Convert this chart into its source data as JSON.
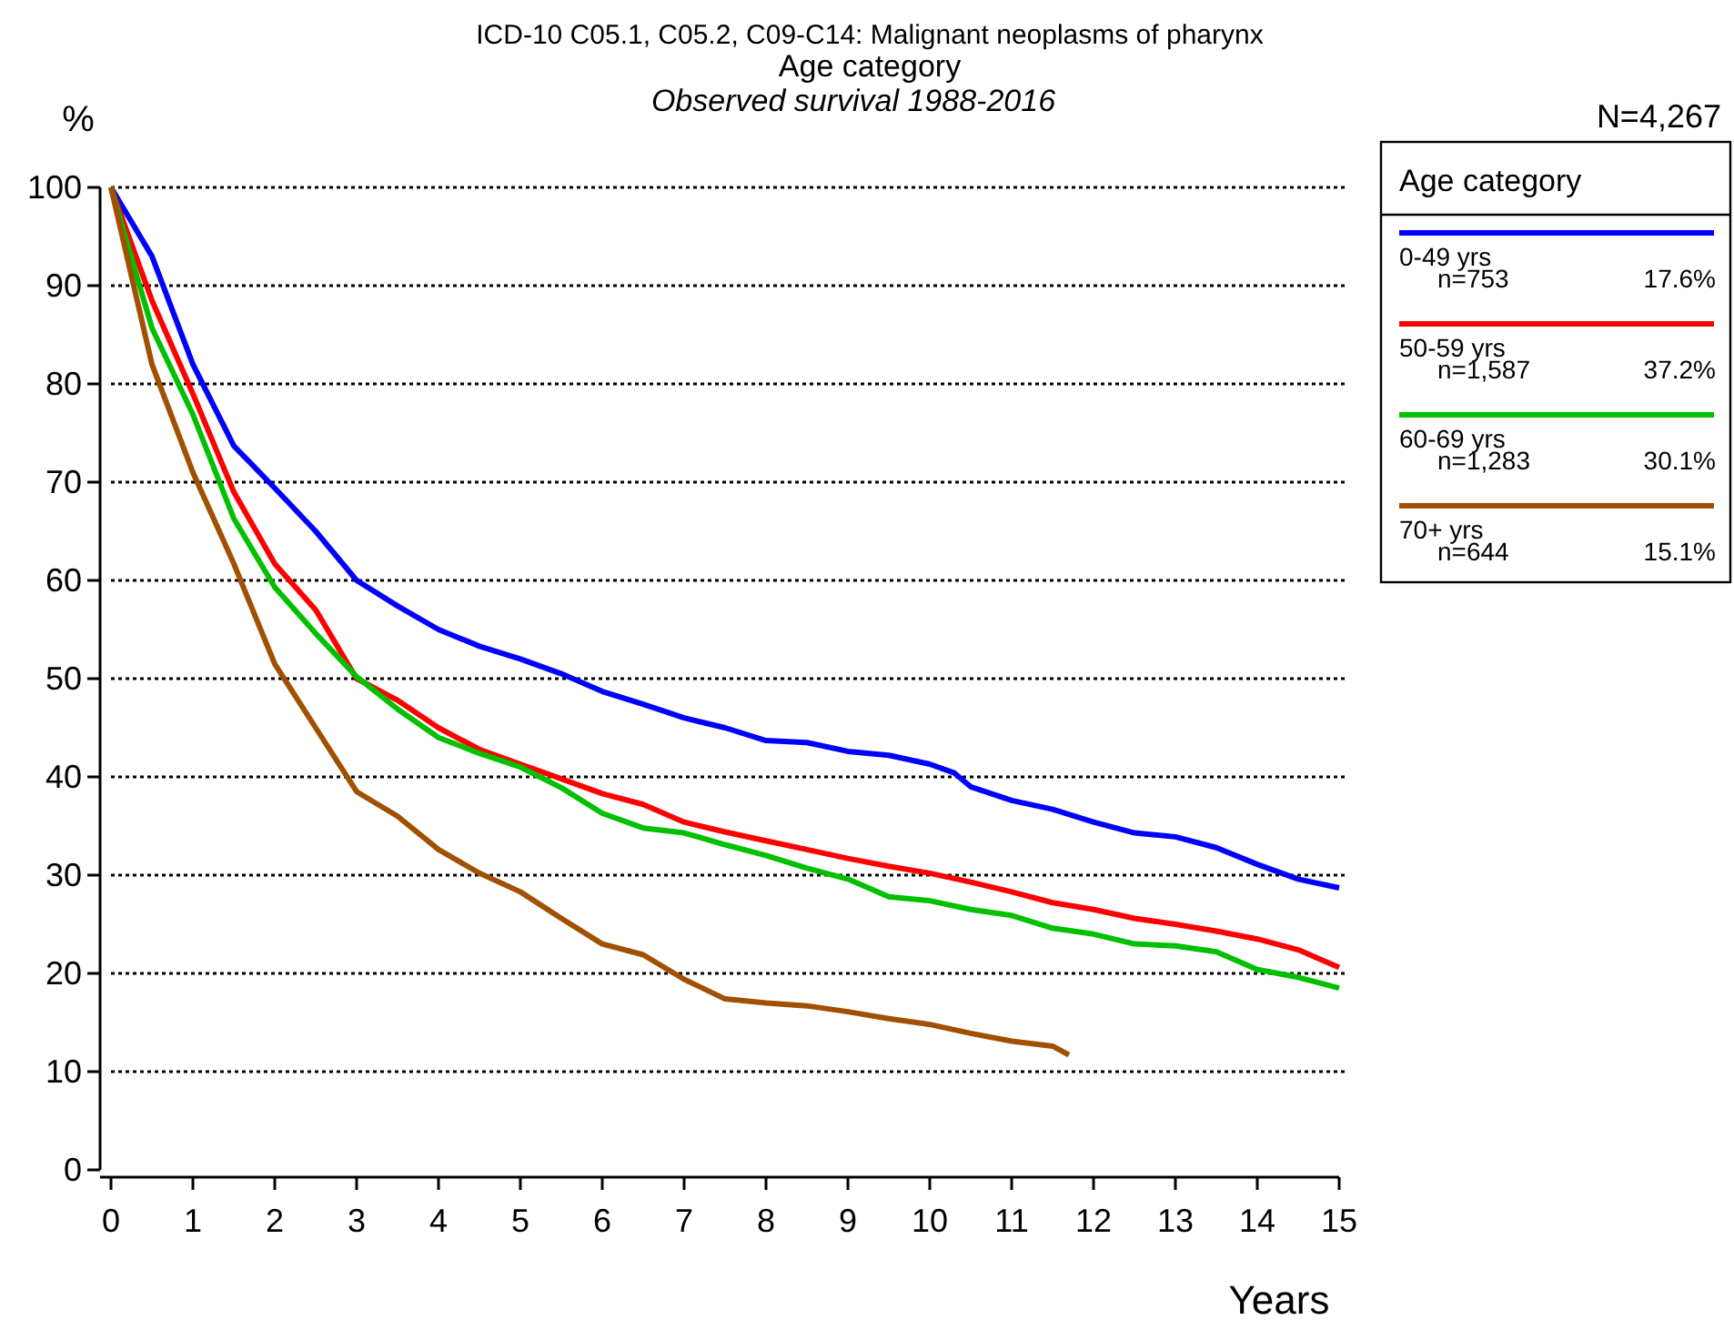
{
  "chart_data": {
    "type": "line",
    "title": "ICD-10 C05.1, C05.2, C09-C14: Malignant neoplasms of pharynx\nAge category",
    "subtitle": "Observed survival 1988-2016",
    "xlabel": "Years",
    "ylabel": "%",
    "legend_title": "Age category",
    "legend": "right",
    "grid": "y",
    "xlim": [
      0,
      15
    ],
    "ylim": [
      0,
      100
    ],
    "xticks": [
      0,
      1,
      2,
      3,
      4,
      5,
      6,
      7,
      8,
      9,
      10,
      11,
      12,
      13,
      14,
      15
    ],
    "yticks": [
      0,
      10,
      20,
      30,
      40,
      50,
      60,
      70,
      80,
      90,
      100
    ],
    "annotations": [
      "N=4,267",
      "n=753",
      "17.6%",
      "n=1,587",
      "37.2%",
      "n=1,283",
      "30.1%",
      "n=644",
      "15.1%"
    ],
    "series": [
      {
        "name": "0-49 yrs",
        "color": "#0000ff",
        "x": [
          0,
          0.5,
          1,
          1.5,
          2,
          2.5,
          3,
          3.5,
          4,
          4.5,
          5,
          5.5,
          6,
          6.5,
          7,
          7.5,
          8,
          8.5,
          9,
          9.5,
          10,
          10.3,
          10.5,
          11,
          11.5,
          12,
          12.5,
          13,
          13.5,
          14,
          14.5,
          15
        ],
        "values": [
          100,
          93,
          82,
          73.7,
          69.4,
          65,
          60,
          57.4,
          55,
          53.3,
          52,
          50.5,
          48.7,
          47.4,
          46,
          45,
          43.7,
          43.5,
          42.6,
          42.2,
          41.3,
          40.4,
          39,
          37.6,
          36.7,
          35.4,
          34.3,
          33.9,
          32.8,
          31.1,
          29.6,
          28.7
        ]
      },
      {
        "name": "50-59 yrs",
        "color": "#ff0000",
        "x": [
          0,
          0.5,
          1,
          1.5,
          2,
          2.5,
          3,
          3.5,
          4,
          4.5,
          5,
          5.5,
          6,
          6.5,
          7,
          7.5,
          8,
          8.5,
          9,
          9.5,
          10,
          10.5,
          11,
          11.5,
          12,
          12.5,
          13,
          13.5,
          14,
          14.5,
          15
        ],
        "values": [
          100,
          88.5,
          79,
          69,
          61.7,
          57,
          50,
          47.8,
          45,
          42.8,
          41.3,
          39.8,
          38.3,
          37.2,
          35.4,
          34.4,
          33.5,
          32.6,
          31.7,
          30.9,
          30.2,
          29.3,
          28.3,
          27.2,
          26.5,
          25.6,
          25,
          24.3,
          23.5,
          22.4,
          20.6
        ]
      },
      {
        "name": "60-69 yrs",
        "color": "#00c000",
        "x": [
          0,
          0.5,
          1,
          1.5,
          2,
          2.5,
          3,
          3.5,
          4,
          4.5,
          5,
          5.5,
          6,
          6.5,
          7,
          7.5,
          8,
          8.5,
          9,
          9.5,
          10,
          10.5,
          11,
          11.5,
          12,
          12.5,
          13,
          13.5,
          14,
          14.5,
          15
        ],
        "values": [
          100,
          85.7,
          76.9,
          66.3,
          59.3,
          54.6,
          50.2,
          46.9,
          44,
          42.4,
          41,
          38.9,
          36.3,
          34.8,
          34.3,
          33.1,
          32,
          30.7,
          29.6,
          27.8,
          27.4,
          26.5,
          25.9,
          24.6,
          24,
          23,
          22.8,
          22.2,
          20.4,
          19.6,
          18.5
        ]
      },
      {
        "name": "70+ yrs",
        "color": "#a05000",
        "x": [
          0,
          0.25,
          0.5,
          1,
          1.5,
          2,
          2.5,
          3,
          3.5,
          4,
          4.5,
          5,
          5.5,
          6,
          6.5,
          7,
          7.5,
          8,
          8.5,
          9,
          9.5,
          10,
          10.5,
          11,
          11.5,
          11.7
        ],
        "values": [
          100,
          91,
          82,
          71,
          61.7,
          51.5,
          45,
          38.5,
          36,
          32.6,
          30.2,
          28.3,
          25.6,
          23,
          21.9,
          19.4,
          17.4,
          17,
          16.7,
          16.1,
          15.4,
          14.8,
          13.9,
          13.1,
          12.6,
          11.7
        ]
      }
    ]
  }
}
